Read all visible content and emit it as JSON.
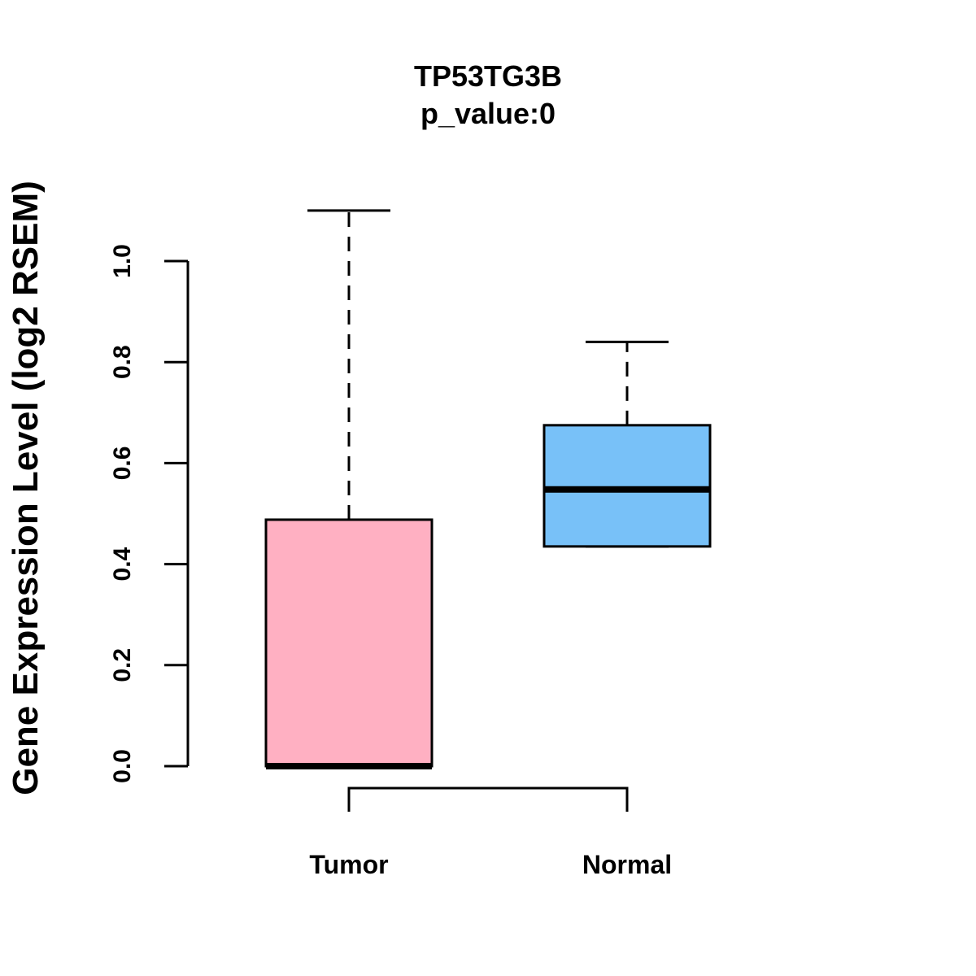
{
  "chart_data": {
    "type": "boxplot",
    "title": "TP53TG3B",
    "subtitle": "p_value:0",
    "ylabel": "Gene Expression Level (log2 RSEM)",
    "xlabel": "",
    "ylim": [
      0,
      1.0
    ],
    "yticks": [
      "0.0",
      "0.2",
      "0.4",
      "0.6",
      "0.8",
      "1.0"
    ],
    "categories": [
      "Tumor",
      "Normal"
    ],
    "boxes": [
      {
        "category": "Tumor",
        "min": 0.0,
        "q1": 0.0,
        "median": 0.0,
        "q3": 0.488,
        "max": 1.1,
        "color": "#FFB0C2"
      },
      {
        "category": "Normal",
        "min": 0.435,
        "q1": 0.435,
        "median": 0.548,
        "q3": 0.675,
        "max": 0.84,
        "color": "#78C1F8"
      }
    ],
    "grid": false,
    "legend": "none"
  }
}
